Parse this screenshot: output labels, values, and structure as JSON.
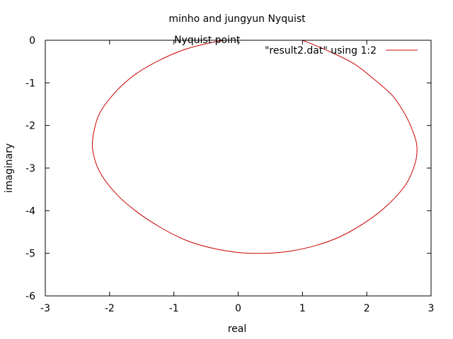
{
  "chart_data": {
    "type": "line",
    "title": "minho and jungyun Nyquist",
    "xlabel": "real",
    "ylabel": "imaginary",
    "xlim": [
      -3,
      3
    ],
    "ylim": [
      -6,
      0
    ],
    "xticks": [
      "-3",
      "-2",
      "-1",
      "0",
      "1",
      "2",
      "3"
    ],
    "yticks": [
      "0",
      "-1",
      "-2",
      "-3",
      "-4",
      "-5",
      "-6"
    ],
    "grid": false,
    "legend": "top-right",
    "annotations": [
      {
        "text": "Nyquist point",
        "x": -0.5,
        "y": 0.0
      }
    ],
    "series": [
      {
        "name": "\"result2.dat\" using 1:2",
        "color": "#cc0000",
        "x": [
          1.0,
          1.4,
          1.8,
          2.1,
          2.4,
          2.6,
          2.72,
          2.78,
          2.75,
          2.6,
          2.3,
          2.0,
          1.6,
          1.2,
          0.8,
          0.4,
          0.0,
          -0.4,
          -0.8,
          -1.2,
          -1.6,
          -1.9,
          -2.15,
          -2.26,
          -2.25,
          -2.15,
          -1.9,
          -1.6,
          -1.2,
          -0.8,
          -0.4,
          -0.2
        ],
        "y": [
          0.0,
          -0.25,
          -0.55,
          -0.9,
          -1.3,
          -1.75,
          -2.15,
          -2.5,
          -2.9,
          -3.4,
          -3.9,
          -4.25,
          -4.6,
          -4.82,
          -4.95,
          -5.0,
          -4.98,
          -4.88,
          -4.7,
          -4.4,
          -4.0,
          -3.6,
          -3.1,
          -2.6,
          -2.2,
          -1.7,
          -1.2,
          -0.8,
          -0.45,
          -0.2,
          -0.05,
          0.0
        ]
      }
    ]
  }
}
